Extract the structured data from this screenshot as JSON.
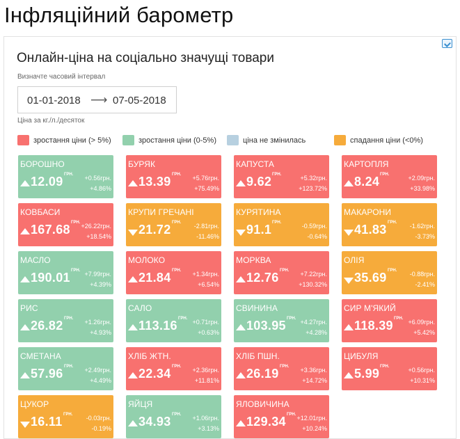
{
  "page": {
    "title": "Інфляційний барометр"
  },
  "widget": {
    "title": "Онлайн-ціна на соціально значущі товари",
    "interval_label": "Визначте часовий інтервал",
    "date_from": "01-01-2018",
    "date_arrow": "⟶",
    "date_to": "07-05-2018",
    "unit_note": "Ціна за кг./л./десяток",
    "corner_icon": "code-embed-icon"
  },
  "colors": {
    "rise_high": "#f8716f",
    "rise_low": "#92d0ad",
    "no_change": "#b7d0e0",
    "fall": "#f6ab3b"
  },
  "legend": [
    {
      "label": "зростання ціни (> 5%)",
      "color": "#f8716f"
    },
    {
      "label": "зростання ціни (0-5%)",
      "color": "#92d0ad"
    },
    {
      "label": "ціна не змінилась",
      "color": "#b7d0e0"
    },
    {
      "label": "спадання ціни (<0%)",
      "color": "#f6ab3b"
    }
  ],
  "currency_unit": "ГРН.",
  "products": [
    {
      "name": "БОРОШНО",
      "price": "12.09",
      "abs": "+0.56грн.",
      "pct": "+4.86%",
      "dir": "up",
      "color": "#92d0ad"
    },
    {
      "name": "БУРЯК",
      "price": "13.39",
      "abs": "+5.76грн.",
      "pct": "+75.49%",
      "dir": "up",
      "color": "#f8716f"
    },
    {
      "name": "КАПУСТА",
      "price": "9.62",
      "abs": "+5.32грн.",
      "pct": "+123.72%",
      "dir": "up",
      "color": "#f8716f"
    },
    {
      "name": "КАРТОПЛЯ",
      "price": "8.24",
      "abs": "+2.09грн.",
      "pct": "+33.98%",
      "dir": "up",
      "color": "#f8716f"
    },
    {
      "name": "КОВБАСИ",
      "price": "167.68",
      "abs": "+26.22грн.",
      "pct": "+18.54%",
      "dir": "up",
      "color": "#f8716f"
    },
    {
      "name": "КРУПИ ГРЕЧАНІ",
      "price": "21.72",
      "abs": "-2.81грн.",
      "pct": "-11.46%",
      "dir": "down",
      "color": "#f6ab3b"
    },
    {
      "name": "КУРЯТИНА",
      "price": "91.1",
      "abs": "-0.59грн.",
      "pct": "-0.64%",
      "dir": "down",
      "color": "#f6ab3b"
    },
    {
      "name": "МАКАРОНИ",
      "price": "41.83",
      "abs": "-1.62грн.",
      "pct": "-3.73%",
      "dir": "down",
      "color": "#f6ab3b"
    },
    {
      "name": "МАСЛО",
      "price": "190.01",
      "abs": "+7.99грн.",
      "pct": "+4.39%",
      "dir": "up",
      "color": "#92d0ad"
    },
    {
      "name": "МОЛОКО",
      "price": "21.84",
      "abs": "+1.34грн.",
      "pct": "+6.54%",
      "dir": "up",
      "color": "#f8716f"
    },
    {
      "name": "МОРКВА",
      "price": "12.76",
      "abs": "+7.22грн.",
      "pct": "+130.32%",
      "dir": "up",
      "color": "#f8716f"
    },
    {
      "name": "ОЛІЯ",
      "price": "35.69",
      "abs": "-0.88грн.",
      "pct": "-2.41%",
      "dir": "down",
      "color": "#f6ab3b"
    },
    {
      "name": "РИС",
      "price": "26.82",
      "abs": "+1.26грн.",
      "pct": "+4.93%",
      "dir": "up",
      "color": "#92d0ad"
    },
    {
      "name": "САЛО",
      "price": "113.16",
      "abs": "+0.71грн.",
      "pct": "+0.63%",
      "dir": "up",
      "color": "#92d0ad"
    },
    {
      "name": "СВИНИНА",
      "price": "103.95",
      "abs": "+4.27грн.",
      "pct": "+4.28%",
      "dir": "up",
      "color": "#92d0ad"
    },
    {
      "name": "СИР М'ЯКИЙ",
      "price": "118.39",
      "abs": "+6.09грн.",
      "pct": "+5.42%",
      "dir": "up",
      "color": "#f8716f"
    },
    {
      "name": "СМЕТАНА",
      "price": "57.96",
      "abs": "+2.49грн.",
      "pct": "+4.49%",
      "dir": "up",
      "color": "#92d0ad"
    },
    {
      "name": "ХЛІБ ЖТН.",
      "price": "22.34",
      "abs": "+2.36грн.",
      "pct": "+11.81%",
      "dir": "up",
      "color": "#f8716f"
    },
    {
      "name": "ХЛІБ ПШН.",
      "price": "26.19",
      "abs": "+3.36грн.",
      "pct": "+14.72%",
      "dir": "up",
      "color": "#f8716f"
    },
    {
      "name": "ЦИБУЛЯ",
      "price": "5.99",
      "abs": "+0.56грн.",
      "pct": "+10.31%",
      "dir": "up",
      "color": "#f8716f"
    },
    {
      "name": "ЦУКОР",
      "price": "16.11",
      "abs": "-0.03грн.",
      "pct": "-0.19%",
      "dir": "down",
      "color": "#f6ab3b"
    },
    {
      "name": "ЯЙЦЯ",
      "price": "34.93",
      "abs": "+1.06грн.",
      "pct": "+3.13%",
      "dir": "up",
      "color": "#92d0ad"
    },
    {
      "name": "ЯЛОВИЧИНА",
      "price": "129.34",
      "abs": "+12.01грн.",
      "pct": "+10.24%",
      "dir": "up",
      "color": "#f8716f"
    }
  ]
}
